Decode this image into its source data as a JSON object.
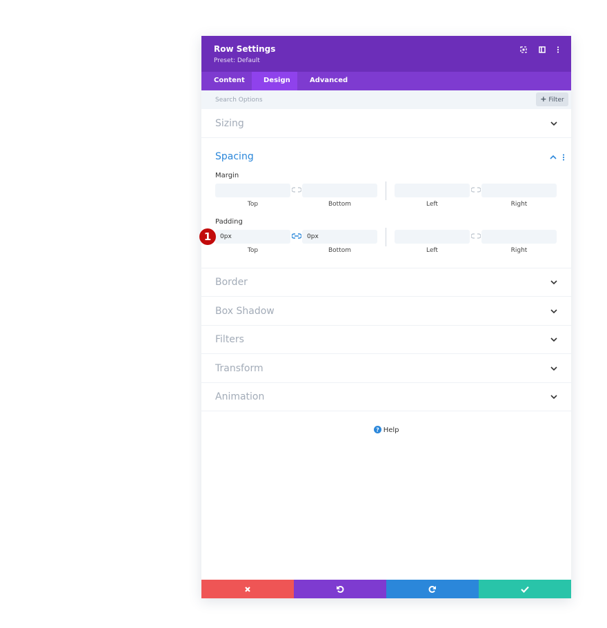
{
  "header": {
    "title": "Row Settings",
    "preset": "Preset: Default"
  },
  "tabs": [
    "Content",
    "Design",
    "Advanced"
  ],
  "search": {
    "placeholder": "Search Options",
    "filter": "Filter"
  },
  "sections": [
    "Sizing",
    "Spacing",
    "Border",
    "Box Shadow",
    "Filters",
    "Transform",
    "Animation"
  ],
  "spacing": {
    "margin": {
      "label": "Margin",
      "fields": [
        "Top",
        "Bottom",
        "Left",
        "Right"
      ]
    },
    "padding": {
      "label": "Padding",
      "fields": [
        "Top",
        "Bottom",
        "Left",
        "Right"
      ],
      "values": [
        "0px",
        "0px"
      ]
    }
  },
  "annotation": "1",
  "help": "Help"
}
